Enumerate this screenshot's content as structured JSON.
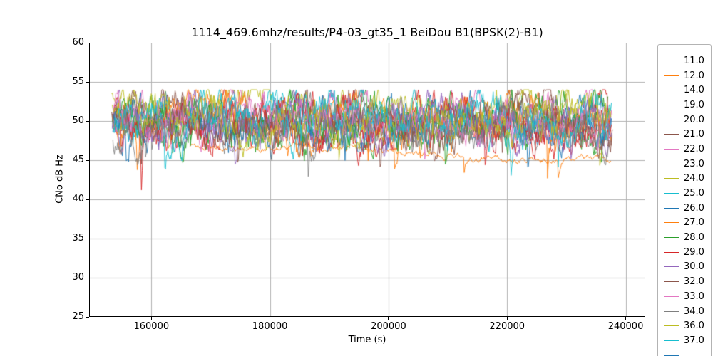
{
  "chart_data": {
    "type": "line",
    "title": "1114_469.6mhz/results/P4-03_gt35_1 BeiDou B1(BPSK(2)-B1)",
    "xlabel": "Time (s)",
    "ylabel": "CNo dB Hz",
    "xlim": [
      149500,
      243300
    ],
    "ylim": [
      25,
      60
    ],
    "xticks": [
      160000,
      180000,
      200000,
      220000,
      240000
    ],
    "xtick_labels": [
      "160000",
      "180000",
      "200000",
      "220000",
      "240000"
    ],
    "yticks": [
      25,
      30,
      35,
      40,
      45,
      50,
      55,
      60
    ],
    "ytick_labels": [
      "25",
      "30",
      "35",
      "40",
      "45",
      "50",
      "55",
      "60"
    ],
    "grid": true,
    "grid_color": "#b0b0b0",
    "axis_color": "#000000",
    "legend_position": "right-outside",
    "legend_partial": {
      "color": "#1f77b4",
      "label": ""
    },
    "series": [
      {
        "label": "11.0",
        "color": "#1f77b4",
        "x_start": 153400,
        "x_end": 237600,
        "base_start": 49.6,
        "base_end": 49.9,
        "noise": 1.25,
        "dip_prob": 0.012,
        "dip_depth": 4.0,
        "wobble_amp": 0.8,
        "wobble_freq": 3.2,
        "seed": 101
      },
      {
        "label": "12.0",
        "color": "#ff7f0e",
        "x_start": 166500,
        "x_end": 237500,
        "base_start": 47.0,
        "base_end": 44.9,
        "noise": 0.22,
        "dip_prob": 0.003,
        "dip_depth": 1.2,
        "wobble_amp": 0.35,
        "wobble_freq": 1.4,
        "seed": 102
      },
      {
        "label": "14.0",
        "color": "#2ca02c",
        "x_start": 153400,
        "x_end": 237000,
        "base_start": 50.3,
        "base_end": 49.6,
        "noise": 1.45,
        "dip_prob": 0.016,
        "dip_depth": 6.0,
        "wobble_amp": 0.9,
        "wobble_freq": 4.1,
        "seed": 103
      },
      {
        "label": "19.0",
        "color": "#d62728",
        "x_start": 153600,
        "x_end": 237600,
        "base_start": 49.1,
        "base_end": 49.6,
        "noise": 1.55,
        "dip_prob": 0.013,
        "dip_depth": 5.0,
        "wobble_amp": 0.8,
        "wobble_freq": 2.7,
        "seed": 104
      },
      {
        "label": "20.0",
        "color": "#9467bd",
        "x_start": 153400,
        "x_end": 237400,
        "base_start": 50.6,
        "base_end": 49.1,
        "noise": 1.3,
        "dip_prob": 0.011,
        "dip_depth": 4.0,
        "wobble_amp": 0.7,
        "wobble_freq": 3.6,
        "seed": 105
      },
      {
        "label": "21.0",
        "color": "#8c564b",
        "x_start": 153300,
        "x_end": 237800,
        "base_start": 51.1,
        "base_end": 49.8,
        "noise": 1.35,
        "dip_prob": 0.011,
        "dip_depth": 4.0,
        "wobble_amp": 0.9,
        "wobble_freq": 2.3,
        "seed": 106
      },
      {
        "label": "22.0",
        "color": "#e377c2",
        "x_start": 153500,
        "x_end": 237700,
        "base_start": 49.9,
        "base_end": 50.7,
        "noise": 1.3,
        "dip_prob": 0.01,
        "dip_depth": 4.0,
        "wobble_amp": 0.8,
        "wobble_freq": 3.9,
        "seed": 107
      },
      {
        "label": "23.0",
        "color": "#7f7f7f",
        "x_start": 153400,
        "x_end": 237300,
        "base_start": 50.8,
        "base_end": 48.9,
        "noise": 1.2,
        "dip_prob": 0.01,
        "dip_depth": 4.0,
        "wobble_amp": 0.7,
        "wobble_freq": 2.9,
        "seed": 108
      },
      {
        "label": "24.0",
        "color": "#bcbd22",
        "x_start": 153300,
        "x_end": 237200,
        "base_start": 51.6,
        "base_end": 50.0,
        "noise": 1.3,
        "dip_prob": 0.011,
        "dip_depth": 4.0,
        "wobble_amp": 0.8,
        "wobble_freq": 3.4,
        "seed": 109
      },
      {
        "label": "25.0",
        "color": "#17becf",
        "x_start": 153500,
        "x_end": 237400,
        "base_start": 50.4,
        "base_end": 49.7,
        "noise": 1.3,
        "dip_prob": 0.01,
        "dip_depth": 4.0,
        "wobble_amp": 0.8,
        "wobble_freq": 4.3,
        "seed": 110
      },
      {
        "label": "26.0",
        "color": "#1f77b4",
        "x_start": 153600,
        "x_end": 237500,
        "base_start": 49.3,
        "base_end": 50.0,
        "noise": 1.45,
        "dip_prob": 0.012,
        "dip_depth": 5.0,
        "wobble_amp": 0.8,
        "wobble_freq": 3.0,
        "seed": 111
      },
      {
        "label": "27.0",
        "color": "#ff7f0e",
        "x_start": 153400,
        "x_end": 237600,
        "base_start": 49.7,
        "base_end": 50.3,
        "noise": 1.45,
        "dip_prob": 0.012,
        "dip_depth": 5.0,
        "wobble_amp": 0.9,
        "wobble_freq": 3.7,
        "seed": 112
      },
      {
        "label": "28.0",
        "color": "#2ca02c",
        "x_start": 153500,
        "x_end": 237300,
        "base_start": 50.1,
        "base_end": 50.5,
        "noise": 1.4,
        "dip_prob": 0.011,
        "dip_depth": 4.0,
        "wobble_amp": 0.8,
        "wobble_freq": 2.6,
        "seed": 113
      },
      {
        "label": "29.0",
        "color": "#d62728",
        "x_start": 153700,
        "x_end": 237500,
        "base_start": 50.5,
        "base_end": 49.0,
        "noise": 1.5,
        "dip_prob": 0.013,
        "dip_depth": 5.0,
        "wobble_amp": 0.9,
        "wobble_freq": 3.3,
        "seed": 114
      },
      {
        "label": "30.0",
        "color": "#9467bd",
        "x_start": 153500,
        "x_end": 237600,
        "base_start": 49.5,
        "base_end": 50.4,
        "noise": 1.4,
        "dip_prob": 0.011,
        "dip_depth": 4.0,
        "wobble_amp": 0.8,
        "wobble_freq": 4.0,
        "seed": 115
      },
      {
        "label": "32.0",
        "color": "#8c564b",
        "x_start": 153400,
        "x_end": 237700,
        "base_start": 50.0,
        "base_end": 49.5,
        "noise": 1.3,
        "dip_prob": 0.01,
        "dip_depth": 4.0,
        "wobble_amp": 0.7,
        "wobble_freq": 2.8,
        "seed": 116
      },
      {
        "label": "33.0",
        "color": "#e377c2",
        "x_start": 153600,
        "x_end": 237400,
        "base_start": 50.7,
        "base_end": 50.1,
        "noise": 1.25,
        "dip_prob": 0.01,
        "dip_depth": 4.0,
        "wobble_amp": 0.8,
        "wobble_freq": 3.5,
        "seed": 117
      },
      {
        "label": "34.0",
        "color": "#7f7f7f",
        "x_start": 153500,
        "x_end": 237200,
        "base_start": 49.4,
        "base_end": 49.1,
        "noise": 1.3,
        "dip_prob": 0.011,
        "dip_depth": 4.0,
        "wobble_amp": 0.7,
        "wobble_freq": 3.1,
        "seed": 118
      },
      {
        "label": "36.0",
        "color": "#bcbd22",
        "x_start": 153400,
        "x_end": 237500,
        "base_start": 51.0,
        "base_end": 49.8,
        "noise": 1.3,
        "dip_prob": 0.011,
        "dip_depth": 4.0,
        "wobble_amp": 0.8,
        "wobble_freq": 2.4,
        "seed": 119
      },
      {
        "label": "37.0",
        "color": "#17becf",
        "x_start": 153600,
        "x_end": 237600,
        "base_start": 49.8,
        "base_end": 50.7,
        "noise": 1.4,
        "dip_prob": 0.011,
        "dip_depth": 4.0,
        "wobble_amp": 0.9,
        "wobble_freq": 3.8,
        "seed": 120
      }
    ]
  }
}
